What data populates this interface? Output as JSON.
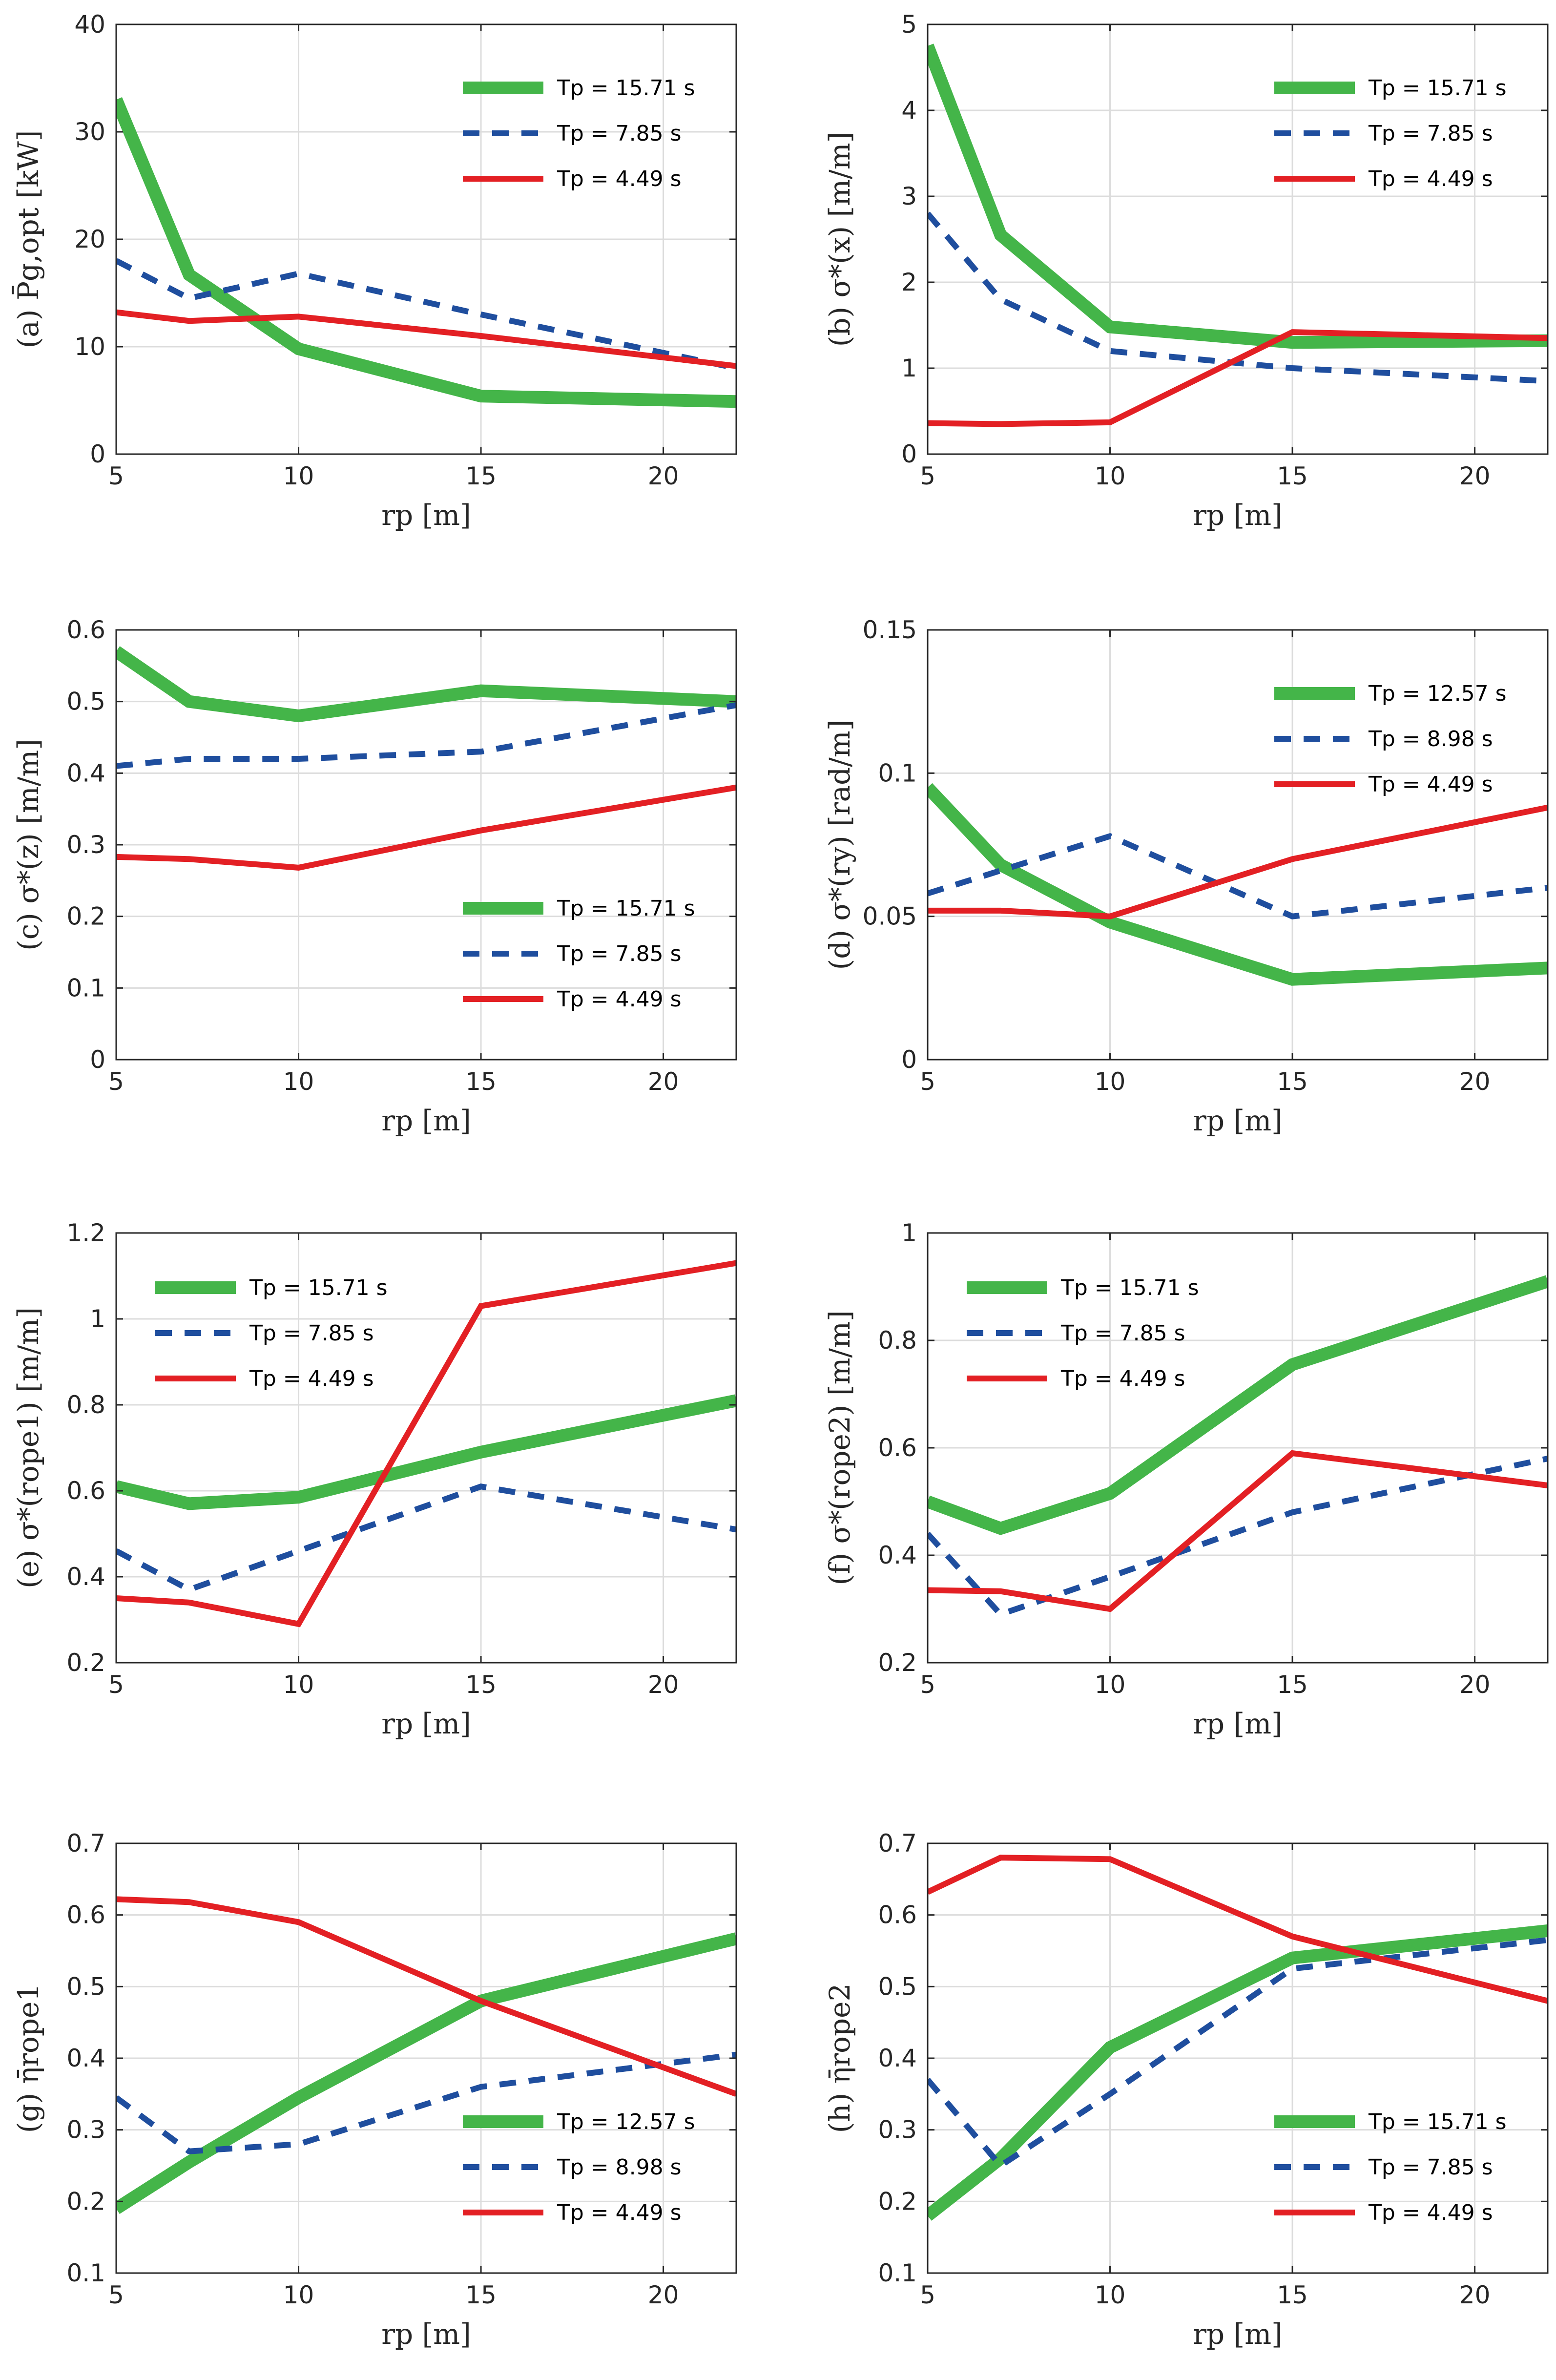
{
  "chart_data": [
    {
      "type": "line",
      "panel": "a",
      "ylabel": "(a) P̄g,opt [kW]",
      "xlabel": "rp [m]",
      "xlim": [
        5,
        22
      ],
      "ylim": [
        0,
        40
      ],
      "xticks": [
        5,
        10,
        15,
        20
      ],
      "yticks": [
        0,
        10,
        20,
        30,
        40
      ],
      "ytick_labels": [
        "0",
        "10",
        "20",
        "30",
        "40"
      ],
      "legend_position": "top-right",
      "x": [
        5,
        7,
        10,
        15,
        22
      ],
      "series": [
        {
          "name": "15.71",
          "legend": "Tp = 15.71 s",
          "color": "#44B549",
          "style": "solid-thick",
          "values": [
            33,
            16.7,
            9.8,
            5.4,
            4.9
          ]
        },
        {
          "name": "7.85",
          "legend": "Tp = 7.85 s",
          "color": "#1F4E9E",
          "style": "dashed",
          "values": [
            18,
            14.5,
            16.8,
            13,
            8
          ]
        },
        {
          "name": "4.49",
          "legend": "Tp = 4.49 s",
          "color": "#E32024",
          "style": "solid",
          "values": [
            13.2,
            12.4,
            12.8,
            11,
            8.2
          ]
        }
      ]
    },
    {
      "type": "line",
      "panel": "b",
      "ylabel": "(b) σ*(x) [m/m]",
      "xlabel": "rp [m]",
      "xlim": [
        5,
        22
      ],
      "ylim": [
        0,
        5
      ],
      "xticks": [
        5,
        10,
        15,
        20
      ],
      "yticks": [
        0,
        1,
        2,
        3,
        4,
        5
      ],
      "ytick_labels": [
        "0",
        "1",
        "2",
        "3",
        "4",
        "5"
      ],
      "legend_position": "top-right",
      "x": [
        5,
        7,
        10,
        15,
        22
      ],
      "series": [
        {
          "name": "15.71",
          "legend": "Tp = 15.71 s",
          "color": "#44B549",
          "style": "solid-thick",
          "values": [
            4.75,
            2.55,
            1.48,
            1.3,
            1.32
          ]
        },
        {
          "name": "7.85",
          "legend": "Tp = 7.85 s",
          "color": "#1F4E9E",
          "style": "dashed",
          "values": [
            2.8,
            1.8,
            1.2,
            1.0,
            0.85
          ]
        },
        {
          "name": "4.49",
          "legend": "Tp = 4.49 s",
          "color": "#E32024",
          "style": "solid",
          "values": [
            0.36,
            0.35,
            0.37,
            1.42,
            1.35
          ]
        }
      ]
    },
    {
      "type": "line",
      "panel": "c",
      "ylabel": "(c) σ*(z) [m/m]",
      "xlabel": "rp [m]",
      "xlim": [
        5,
        22
      ],
      "ylim": [
        0,
        0.6
      ],
      "xticks": [
        5,
        10,
        15,
        20
      ],
      "yticks": [
        0,
        0.1,
        0.2,
        0.3,
        0.4,
        0.5,
        0.6
      ],
      "ytick_labels": [
        "0",
        "0.1",
        "0.2",
        "0.3",
        "0.4",
        "0.5",
        "0.6"
      ],
      "legend_position": "bottom-right",
      "x": [
        5,
        7,
        10,
        15,
        22
      ],
      "series": [
        {
          "name": "15.71",
          "legend": "Tp = 15.71 s",
          "color": "#44B549",
          "style": "solid-thick",
          "values": [
            0.57,
            0.5,
            0.48,
            0.515,
            0.5
          ]
        },
        {
          "name": "7.85",
          "legend": "Tp = 7.85 s",
          "color": "#1F4E9E",
          "style": "dashed",
          "values": [
            0.41,
            0.42,
            0.42,
            0.43,
            0.495
          ]
        },
        {
          "name": "4.49",
          "legend": "Tp = 4.49 s",
          "color": "#E32024",
          "style": "solid",
          "values": [
            0.283,
            0.28,
            0.268,
            0.32,
            0.38
          ]
        }
      ]
    },
    {
      "type": "line",
      "panel": "d",
      "ylabel": "(d) σ*(ry) [rad/m]",
      "xlabel": "rp [m]",
      "xlim": [
        5,
        22
      ],
      "ylim": [
        0,
        0.15
      ],
      "xticks": [
        5,
        10,
        15,
        20
      ],
      "yticks": [
        0,
        0.05,
        0.1,
        0.15
      ],
      "ytick_labels": [
        "0",
        "0.05",
        "0.1",
        "0.15"
      ],
      "legend_position": "top-right",
      "x": [
        5,
        7,
        10,
        15,
        22
      ],
      "series": [
        {
          "name": "12.57",
          "legend": "Tp = 12.57 s",
          "color": "#44B549",
          "style": "solid-thick",
          "values": [
            0.095,
            0.068,
            0.048,
            0.028,
            0.032
          ]
        },
        {
          "name": "8.98",
          "legend": "Tp = 8.98 s",
          "color": "#1F4E9E",
          "style": "dashed",
          "values": [
            0.058,
            0.066,
            0.078,
            0.05,
            0.06
          ]
        },
        {
          "name": "4.49",
          "legend": "Tp = 4.49 s",
          "color": "#E32024",
          "style": "solid",
          "values": [
            0.052,
            0.052,
            0.05,
            0.07,
            0.088
          ]
        }
      ]
    },
    {
      "type": "line",
      "panel": "e",
      "ylabel": "(e) σ*(rope1) [m/m]",
      "xlabel": "rp [m]",
      "xlim": [
        5,
        22
      ],
      "ylim": [
        0.2,
        1.2
      ],
      "xticks": [
        5,
        10,
        15,
        20
      ],
      "yticks": [
        0.2,
        0.4,
        0.6,
        0.8,
        1.0,
        1.2
      ],
      "ytick_labels": [
        "0.2",
        "0.4",
        "0.6",
        "0.8",
        "1",
        "1.2"
      ],
      "legend_position": "top-left",
      "x": [
        5,
        7,
        10,
        15,
        22
      ],
      "series": [
        {
          "name": "15.71",
          "legend": "Tp = 15.71 s",
          "color": "#44B549",
          "style": "solid-thick",
          "values": [
            0.61,
            0.57,
            0.585,
            0.69,
            0.81
          ]
        },
        {
          "name": "7.85",
          "legend": "Tp = 7.85 s",
          "color": "#1F4E9E",
          "style": "dashed",
          "values": [
            0.46,
            0.37,
            0.46,
            0.61,
            0.51
          ]
        },
        {
          "name": "4.49",
          "legend": "Tp = 4.49 s",
          "color": "#E32024",
          "style": "solid",
          "values": [
            0.35,
            0.34,
            0.29,
            1.03,
            1.13
          ]
        }
      ]
    },
    {
      "type": "line",
      "panel": "f",
      "ylabel": "(f) σ*(rope2) [m/m]",
      "xlabel": "rp [m]",
      "xlim": [
        5,
        22
      ],
      "ylim": [
        0.2,
        1.0
      ],
      "xticks": [
        5,
        10,
        15,
        20
      ],
      "yticks": [
        0.2,
        0.4,
        0.6,
        0.8,
        1.0
      ],
      "ytick_labels": [
        "0.2",
        "0.4",
        "0.6",
        "0.8",
        "1"
      ],
      "legend_position": "top-left",
      "x": [
        5,
        7,
        10,
        15,
        22
      ],
      "series": [
        {
          "name": "15.71",
          "legend": "Tp = 15.71 s",
          "color": "#44B549",
          "style": "solid-thick",
          "values": [
            0.5,
            0.45,
            0.515,
            0.755,
            0.91
          ]
        },
        {
          "name": "7.85",
          "legend": "Tp = 7.85 s",
          "color": "#1F4E9E",
          "style": "dashed",
          "values": [
            0.44,
            0.29,
            0.36,
            0.48,
            0.58
          ]
        },
        {
          "name": "4.49",
          "legend": "Tp = 4.49 s",
          "color": "#E32024",
          "style": "solid",
          "values": [
            0.335,
            0.333,
            0.3,
            0.59,
            0.53
          ]
        }
      ]
    },
    {
      "type": "line",
      "panel": "g",
      "ylabel": "(g) η̄rope1",
      "xlabel": "rp [m]",
      "xlim": [
        5,
        22
      ],
      "ylim": [
        0.1,
        0.7
      ],
      "xticks": [
        5,
        10,
        15,
        20
      ],
      "yticks": [
        0.1,
        0.2,
        0.3,
        0.4,
        0.5,
        0.6,
        0.7
      ],
      "ytick_labels": [
        "0.1",
        "0.2",
        "0.3",
        "0.4",
        "0.5",
        "0.6",
        "0.7"
      ],
      "legend_position": "bottom-right",
      "x": [
        5,
        7,
        10,
        15,
        22
      ],
      "series": [
        {
          "name": "12.57",
          "legend": "Tp = 12.57 s",
          "color": "#44B549",
          "style": "solid-thick",
          "values": [
            0.19,
            0.255,
            0.345,
            0.48,
            0.567
          ]
        },
        {
          "name": "8.98",
          "legend": "Tp = 8.98 s",
          "color": "#1F4E9E",
          "style": "dashed",
          "values": [
            0.345,
            0.27,
            0.28,
            0.36,
            0.405
          ]
        },
        {
          "name": "4.49",
          "legend": "Tp = 4.49 s",
          "color": "#E32024",
          "style": "solid",
          "values": [
            0.622,
            0.618,
            0.59,
            0.48,
            0.35
          ]
        }
      ]
    },
    {
      "type": "line",
      "panel": "h",
      "ylabel": "(h) η̄rope2",
      "xlabel": "rp [m]",
      "xlim": [
        5,
        22
      ],
      "ylim": [
        0.1,
        0.7
      ],
      "xticks": [
        5,
        10,
        15,
        20
      ],
      "yticks": [
        0.1,
        0.2,
        0.3,
        0.4,
        0.5,
        0.6,
        0.7
      ],
      "ytick_labels": [
        "0.1",
        "0.2",
        "0.3",
        "0.4",
        "0.5",
        "0.6",
        "0.7"
      ],
      "legend_position": "bottom-right",
      "x": [
        5,
        7,
        10,
        15,
        22
      ],
      "series": [
        {
          "name": "15.71",
          "legend": "Tp = 15.71 s",
          "color": "#44B549",
          "style": "solid-thick",
          "values": [
            0.18,
            0.26,
            0.415,
            0.54,
            0.578
          ]
        },
        {
          "name": "7.85",
          "legend": "Tp = 7.85 s",
          "color": "#1F4E9E",
          "style": "dashed",
          "values": [
            0.37,
            0.25,
            0.35,
            0.525,
            0.565
          ]
        },
        {
          "name": "4.49",
          "legend": "Tp = 4.49 s",
          "color": "#E32024",
          "style": "solid",
          "values": [
            0.632,
            0.68,
            0.678,
            0.57,
            0.48
          ]
        }
      ]
    }
  ]
}
